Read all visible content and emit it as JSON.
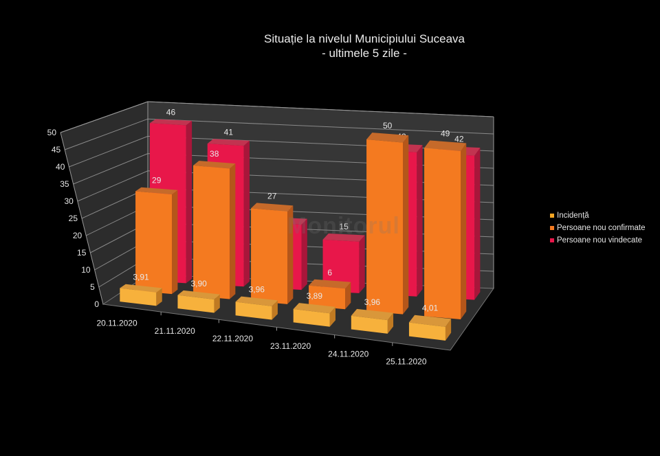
{
  "chart_data": {
    "type": "bar",
    "subtype": "3d-clustered-depth",
    "title": "Situație la nivelul Municipiului Suceava",
    "subtitle": "- ultimele 5 zile -",
    "categories": [
      "20.11.2020",
      "21.11.2020",
      "22.11.2020",
      "23.11.2020",
      "24.11.2020",
      "25.11.2020"
    ],
    "series": [
      {
        "name": "Incidență",
        "color": "#f5a623",
        "values": [
          3.91,
          3.9,
          3.96,
          3.89,
          3.96,
          4.01
        ],
        "labels": [
          "3,91",
          "3,90",
          "3,96",
          "3,89",
          "3,96",
          "4,01"
        ]
      },
      {
        "name": "Persoane nou confirmate",
        "color": "#f47a20",
        "values": [
          29,
          38,
          27,
          6,
          50,
          49
        ],
        "labels": [
          "29",
          "38",
          "27",
          "6",
          "50",
          "49"
        ]
      },
      {
        "name": "Persoane nou vindecate",
        "color": "#e8174a",
        "values": [
          46,
          41,
          19,
          15,
          42,
          42
        ],
        "labels": [
          "46",
          "41",
          "19",
          "15",
          "42",
          "42"
        ]
      }
    ],
    "yticks": [
      "0",
      "5",
      "10",
      "15",
      "20",
      "25",
      "30",
      "35",
      "40",
      "45",
      "50"
    ],
    "ylim": [
      0,
      50
    ],
    "xlabel": "",
    "ylabel": "",
    "grid": true,
    "legend_position": "right",
    "background": "#000000"
  },
  "watermark": "Monitorul"
}
